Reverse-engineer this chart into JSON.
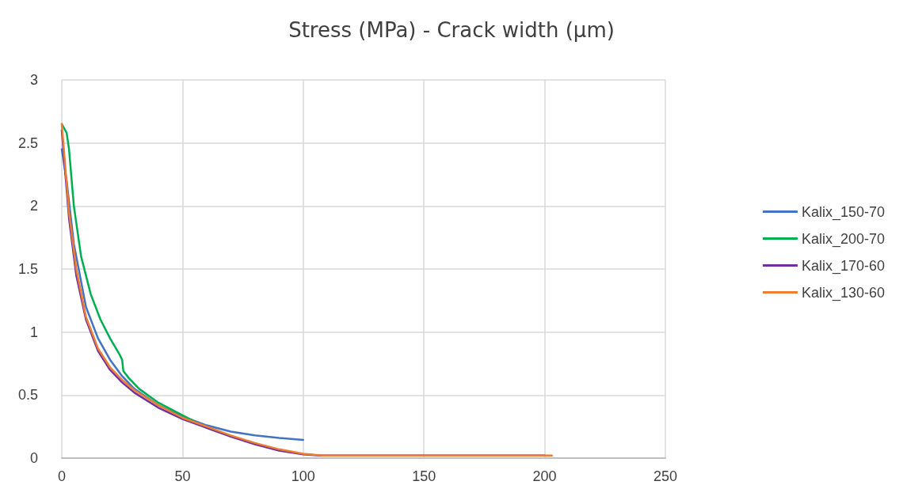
{
  "chart_data": {
    "type": "line",
    "title": "Stress (MPa) - Crack width (µm)",
    "xlim": [
      0,
      250
    ],
    "xticks": [
      0,
      50,
      100,
      150,
      200,
      250
    ],
    "ylim": [
      0,
      3
    ],
    "yticks": [
      0,
      0.5,
      1,
      1.5,
      2,
      2.5,
      3
    ],
    "grid": true,
    "legend": "right",
    "marker": "none",
    "line_style": "solid",
    "series": [
      {
        "name": "Kalix_150-70",
        "color": "#4472c4",
        "x": [
          0,
          2,
          5,
          10,
          15,
          20,
          25,
          30,
          40,
          50,
          60,
          70,
          80,
          90,
          100
        ],
        "values": [
          2.45,
          2.2,
          1.7,
          1.2,
          0.95,
          0.78,
          0.65,
          0.55,
          0.42,
          0.33,
          0.26,
          0.21,
          0.18,
          0.16,
          0.145
        ]
      },
      {
        "name": "Kalix_200-70",
        "color": "#00b050",
        "x": [
          0,
          2,
          3,
          5,
          8,
          12,
          16,
          20,
          24,
          25,
          25.5,
          28,
          32,
          40,
          50,
          56
        ],
        "values": [
          2.65,
          2.58,
          2.45,
          2.0,
          1.6,
          1.3,
          1.1,
          0.95,
          0.82,
          0.78,
          0.69,
          0.63,
          0.55,
          0.44,
          0.34,
          0.28
        ]
      },
      {
        "name": "Kalix_170-60",
        "color": "#7030a0",
        "x": [
          0,
          3,
          6,
          10,
          15,
          20,
          25,
          30,
          40,
          50,
          60,
          70,
          80,
          90,
          100,
          107,
          200
        ],
        "values": [
          2.6,
          1.9,
          1.45,
          1.1,
          0.85,
          0.7,
          0.6,
          0.52,
          0.4,
          0.31,
          0.24,
          0.17,
          0.11,
          0.06,
          0.03,
          0.02,
          0.02
        ]
      },
      {
        "name": "Kalix_130-60",
        "color": "#ed7d31",
        "x": [
          0,
          3,
          6,
          10,
          15,
          20,
          25,
          30,
          40,
          50,
          60,
          70,
          80,
          90,
          100,
          108,
          203
        ],
        "values": [
          2.65,
          1.95,
          1.5,
          1.12,
          0.87,
          0.72,
          0.62,
          0.54,
          0.42,
          0.32,
          0.25,
          0.18,
          0.12,
          0.07,
          0.035,
          0.02,
          0.02
        ]
      }
    ]
  }
}
